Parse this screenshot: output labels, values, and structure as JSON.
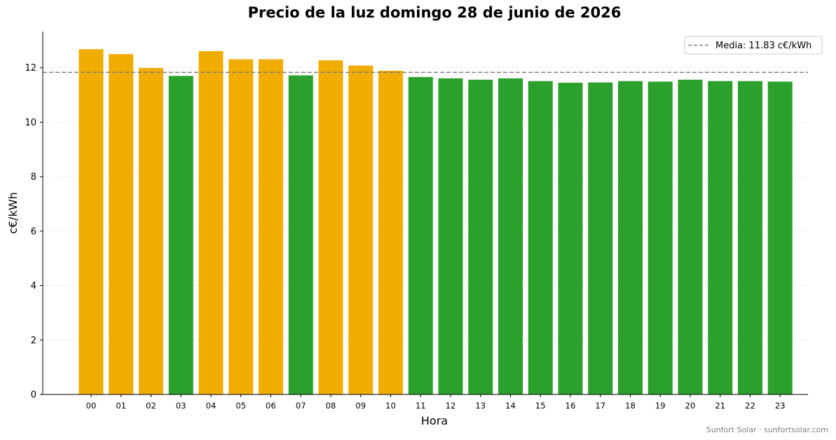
{
  "chart_data": {
    "type": "bar",
    "title": "Precio de la luz domingo 28 de junio de 2026",
    "xlabel": "Hora",
    "ylabel": "c€/kWh",
    "categories": [
      "00",
      "01",
      "02",
      "03",
      "04",
      "05",
      "06",
      "07",
      "08",
      "09",
      "10",
      "11",
      "12",
      "13",
      "14",
      "15",
      "16",
      "17",
      "18",
      "19",
      "20",
      "21",
      "22",
      "23"
    ],
    "values": [
      12.68,
      12.5,
      11.99,
      11.7,
      12.61,
      12.31,
      12.31,
      11.72,
      12.27,
      12.08,
      11.89,
      11.66,
      11.61,
      11.56,
      11.61,
      11.51,
      11.45,
      11.46,
      11.51,
      11.49,
      11.56,
      11.51,
      11.51,
      11.49
    ],
    "ylim": [
      0,
      13.33
    ],
    "yticks": [
      0,
      2,
      4,
      6,
      8,
      10,
      12
    ],
    "grid": "horizontal dotted",
    "mean": 11.83,
    "legend": {
      "label": "Media: 11.83 c€/kWh",
      "placement": "top-right"
    },
    "colors": {
      "above_mean": "#f0ad00",
      "below_mean": "#2ca02c",
      "mean_line": "#808080"
    },
    "credit": "Sunfort Solar · sunfortsolar.com"
  }
}
